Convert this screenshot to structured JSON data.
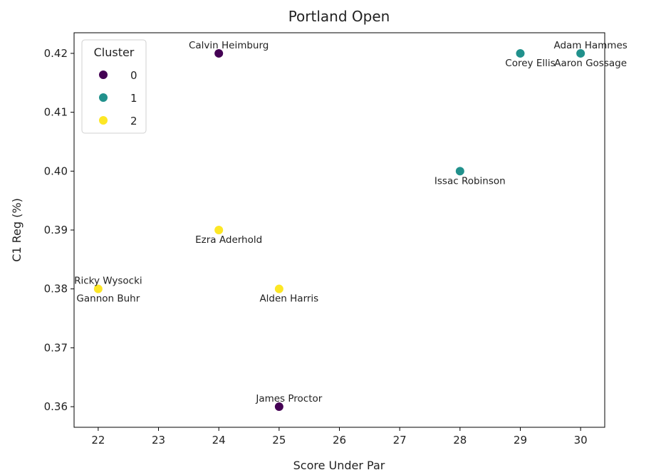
{
  "chart_data": {
    "type": "scatter",
    "title": "Portland Open",
    "xlabel": "Score Under Par",
    "ylabel": "C1 Reg (%)",
    "xlim": [
      21.6,
      30.4
    ],
    "ylim": [
      0.3565,
      0.4235
    ],
    "xticks": [
      "22",
      "23",
      "24",
      "25",
      "26",
      "27",
      "28",
      "29",
      "30"
    ],
    "yticks": [
      "0.36",
      "0.37",
      "0.38",
      "0.39",
      "0.40",
      "0.41",
      "0.42"
    ],
    "grid": false,
    "legend": {
      "title": "Cluster",
      "placement": "top-left",
      "entries": [
        {
          "label": "0",
          "color": "#440154"
        },
        {
          "label": "1",
          "color": "#21918c"
        },
        {
          "label": "2",
          "color": "#fde725"
        }
      ]
    },
    "points": [
      {
        "name": "Calvin Heimburg",
        "x": 24,
        "y": 0.42,
        "cluster": 0,
        "label_pos": "above"
      },
      {
        "name": "James Proctor",
        "x": 25,
        "y": 0.36,
        "cluster": 0,
        "label_pos": "above"
      },
      {
        "name": "Adam Hammes",
        "x": 30,
        "y": 0.42,
        "cluster": 1,
        "label_pos": "above"
      },
      {
        "name": "Corey Ellis",
        "x": 29,
        "y": 0.42,
        "cluster": 1,
        "label_pos": "below"
      },
      {
        "name": "Aaron Gossage",
        "x": 30,
        "y": 0.42,
        "cluster": 1,
        "label_pos": "below"
      },
      {
        "name": "Issac Robinson",
        "x": 28,
        "y": 0.4,
        "cluster": 1,
        "label_pos": "below"
      },
      {
        "name": "Ezra Aderhold",
        "x": 24,
        "y": 0.39,
        "cluster": 2,
        "label_pos": "below"
      },
      {
        "name": "Ricky Wysocki",
        "x": 22,
        "y": 0.38,
        "cluster": 2,
        "label_pos": "above"
      },
      {
        "name": "Gannon Buhr",
        "x": 22,
        "y": 0.38,
        "cluster": 2,
        "label_pos": "below"
      },
      {
        "name": "Alden Harris",
        "x": 25,
        "y": 0.38,
        "cluster": 2,
        "label_pos": "below"
      }
    ]
  }
}
